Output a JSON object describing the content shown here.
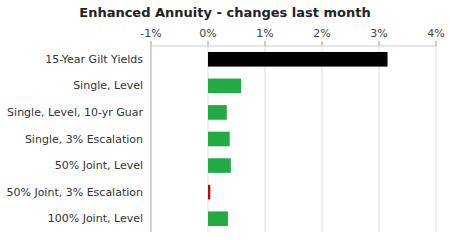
{
  "chart_data": {
    "type": "bar",
    "orientation": "horizontal",
    "title": "Enhanced Annuity - changes last month",
    "categories": [
      "100% Joint, Level",
      "50% Joint, 3% Escalation",
      "50% Joint, Level",
      "Single, 3% Escalation",
      "Single, Level, 10-yr Guar",
      "Single, Level",
      "15-Year Gilt Yields"
    ],
    "values": [
      0.35,
      0.04,
      0.4,
      0.38,
      0.33,
      0.58,
      3.15
    ],
    "colors": [
      "#22aa44",
      "#cc0000",
      "#22aa44",
      "#22aa44",
      "#22aa44",
      "#22aa44",
      "#000000"
    ],
    "xlim": [
      -1.0,
      4.0
    ],
    "xticks": [
      {
        "value": -1.0,
        "label": "-1%"
      },
      {
        "value": 0.0,
        "label": "0%"
      },
      {
        "value": 1.0,
        "label": "1%"
      },
      {
        "value": 2.0,
        "label": "2%"
      },
      {
        "value": 3.0,
        "label": "3%"
      },
      {
        "value": 4.0,
        "label": "4%"
      }
    ],
    "grid": true
  }
}
